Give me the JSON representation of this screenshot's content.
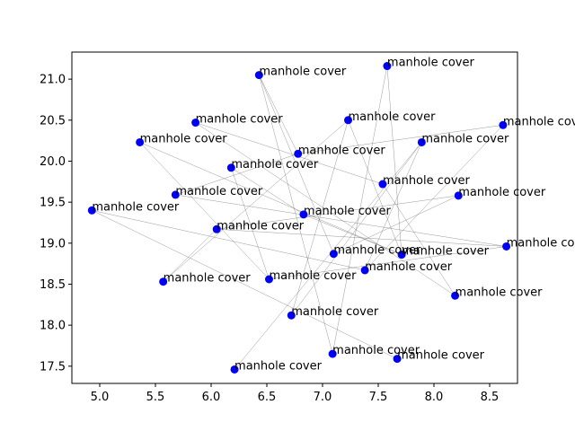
{
  "chart_data": {
    "type": "scatter",
    "title": "",
    "xlabel": "",
    "ylabel": "",
    "xlim": [
      4.75,
      8.75
    ],
    "ylim": [
      17.29,
      21.33
    ],
    "xticks": [
      5.0,
      5.5,
      6.0,
      6.5,
      7.0,
      7.5,
      8.0,
      8.5
    ],
    "yticks": [
      17.5,
      18.0,
      18.5,
      19.0,
      19.5,
      20.0,
      20.5,
      21.0
    ],
    "xtick_labels": [
      "5.0",
      "5.5",
      "6.0",
      "6.5",
      "7.0",
      "7.5",
      "8.0",
      "8.5"
    ],
    "ytick_labels": [
      "17.5",
      "18.0",
      "18.5",
      "19.0",
      "19.5",
      "20.0",
      "20.5",
      "21.0"
    ],
    "grid": false,
    "legend": "none",
    "point_color": "#0000ff",
    "edge_color": "#555555",
    "points": [
      {
        "x": 6.43,
        "y": 21.05,
        "label": "manhole cover"
      },
      {
        "x": 7.58,
        "y": 21.16,
        "label": "manhole cover"
      },
      {
        "x": 5.86,
        "y": 20.47,
        "label": "manhole cover"
      },
      {
        "x": 7.23,
        "y": 20.5,
        "label": "manhole cover"
      },
      {
        "x": 8.62,
        "y": 20.44,
        "label": "manhole cover"
      },
      {
        "x": 5.36,
        "y": 20.23,
        "label": "manhole cover"
      },
      {
        "x": 6.78,
        "y": 20.09,
        "label": "manhole cover"
      },
      {
        "x": 7.89,
        "y": 20.23,
        "label": "manhole cover"
      },
      {
        "x": 6.18,
        "y": 19.92,
        "label": "manhole cover"
      },
      {
        "x": 7.54,
        "y": 19.72,
        "label": "manhole cover"
      },
      {
        "x": 8.22,
        "y": 19.58,
        "label": "manhole cover"
      },
      {
        "x": 5.68,
        "y": 19.59,
        "label": "manhole cover"
      },
      {
        "x": 4.93,
        "y": 19.4,
        "label": "manhole cover"
      },
      {
        "x": 6.83,
        "y": 19.35,
        "label": "manhole cover"
      },
      {
        "x": 6.05,
        "y": 19.17,
        "label": "manhole cover"
      },
      {
        "x": 7.1,
        "y": 18.87,
        "label": "manhole cover"
      },
      {
        "x": 7.71,
        "y": 18.86,
        "label": "manhole cover"
      },
      {
        "x": 8.65,
        "y": 18.96,
        "label": "manhole cover"
      },
      {
        "x": 7.38,
        "y": 18.67,
        "label": "manhole cover"
      },
      {
        "x": 5.57,
        "y": 18.53,
        "label": "manhole cover"
      },
      {
        "x": 6.52,
        "y": 18.56,
        "label": "manhole cover"
      },
      {
        "x": 8.19,
        "y": 18.36,
        "label": "manhole cover"
      },
      {
        "x": 6.72,
        "y": 18.12,
        "label": "manhole cover"
      },
      {
        "x": 7.09,
        "y": 17.65,
        "label": "manhole cover"
      },
      {
        "x": 7.67,
        "y": 17.59,
        "label": "manhole cover"
      },
      {
        "x": 6.21,
        "y": 17.46,
        "label": "manhole cover"
      }
    ],
    "edges": [
      [
        0,
        6
      ],
      [
        0,
        15
      ],
      [
        1,
        23
      ],
      [
        1,
        16
      ],
      [
        2,
        21
      ],
      [
        2,
        9
      ],
      [
        3,
        19
      ],
      [
        3,
        22
      ],
      [
        4,
        18
      ],
      [
        5,
        16
      ],
      [
        5,
        20
      ],
      [
        6,
        4
      ],
      [
        6,
        11
      ],
      [
        7,
        25
      ],
      [
        7,
        22
      ],
      [
        8,
        13
      ],
      [
        8,
        20
      ],
      [
        9,
        21
      ],
      [
        10,
        14
      ],
      [
        11,
        17
      ],
      [
        12,
        24
      ],
      [
        13,
        16
      ],
      [
        14,
        17
      ],
      [
        15,
        10
      ],
      [
        17,
        20
      ],
      [
        18,
        12
      ],
      [
        19,
        14
      ],
      [
        23,
        0
      ],
      [
        3,
        16
      ],
      [
        7,
        18
      ]
    ]
  }
}
